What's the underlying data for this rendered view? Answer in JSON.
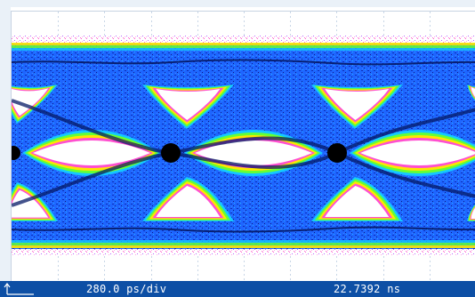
{
  "statusbar": {
    "timebase": "280.0 ps/div",
    "delay": "22.7392 ns",
    "marker_icon": "trigger-reference-arrow-icon"
  },
  "display": {
    "background": "#ffffff",
    "grid_color": "#c8d6e6",
    "density_colors": [
      "#0033cc",
      "#1a6cff",
      "#14c8ff",
      "#66ff33",
      "#ffe600",
      "#ff4fd0",
      "#c37cff",
      "#000000"
    ],
    "statusbar_color": "#0d4fa5"
  }
}
